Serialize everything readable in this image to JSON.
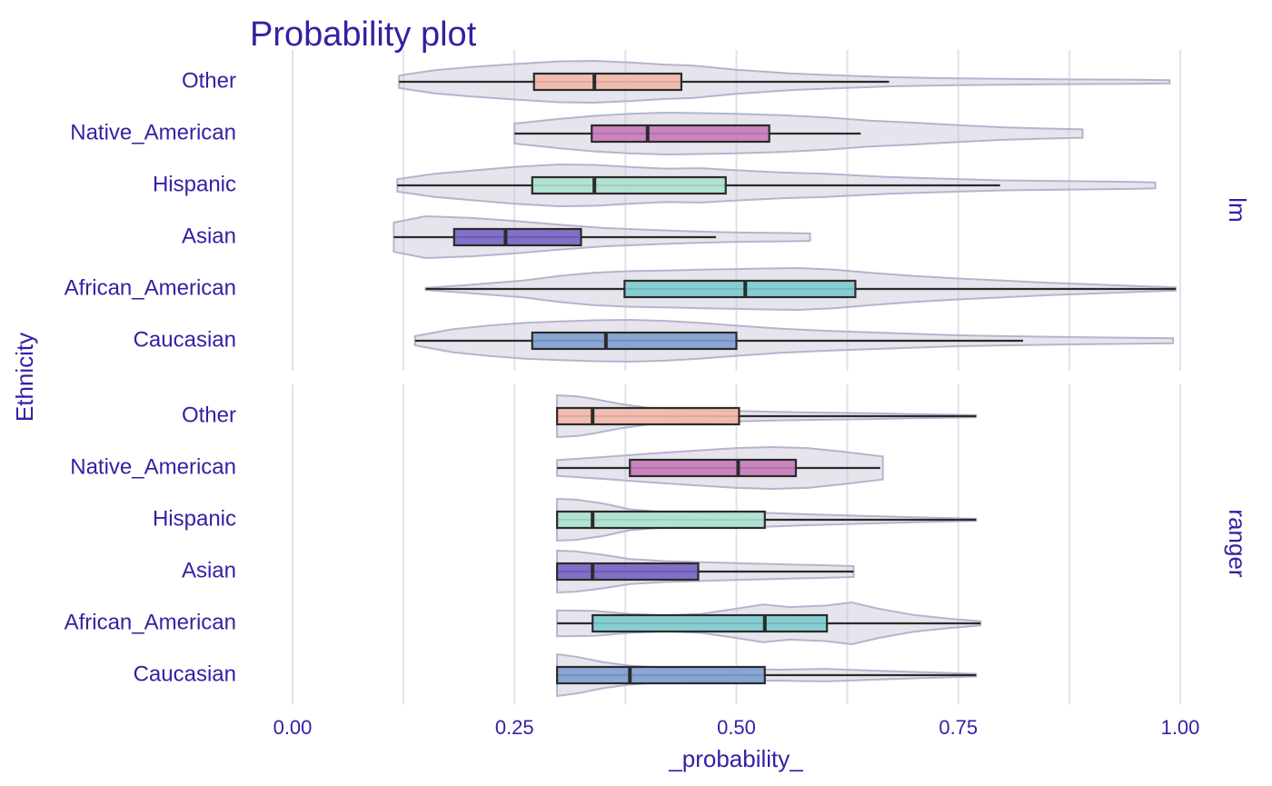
{
  "chart_data": {
    "type": "boxplot+violin",
    "title": "Probability plot",
    "xlabel": "_probability_",
    "ylabel": "Ethnicity",
    "xlim": [
      0,
      1
    ],
    "x_ticks": [
      0,
      0.25,
      0.5,
      0.75,
      1
    ],
    "x_tick_labels": [
      "0.00",
      "0.25",
      "0.50",
      "0.75",
      "1.00"
    ],
    "grid": true,
    "categories": [
      "Other",
      "Native_American",
      "Hispanic",
      "Asian",
      "African_American",
      "Caucasian"
    ],
    "colors": {
      "Other": "#f2b8a8",
      "Native_American": "#c67ab9",
      "Hispanic": "#ace1cf",
      "Asian": "#7763c3",
      "African_American": "#7ccbce",
      "Caucasian": "#7e9fd0",
      "violin_fill": "#c8c6d8",
      "violin_stroke": "#b7b3cc",
      "text": "#371ea3",
      "grid": "#e3e1ea"
    },
    "panels": [
      {
        "name": "lm",
        "series": [
          {
            "category": "Other",
            "min": 0.12,
            "q1": 0.272,
            "median": 0.34,
            "q3": 0.438,
            "max": 0.672,
            "range": [
              0.12,
              0.988
            ],
            "density": [
              [
                0.12,
                0.3
              ],
              [
                0.16,
                0.55
              ],
              [
                0.2,
                0.7
              ],
              [
                0.25,
                0.85
              ],
              [
                0.3,
                0.98
              ],
              [
                0.34,
                1.0
              ],
              [
                0.38,
                0.92
              ],
              [
                0.42,
                0.82
              ],
              [
                0.45,
                0.78
              ],
              [
                0.5,
                0.58
              ],
              [
                0.56,
                0.4
              ],
              [
                0.62,
                0.3
              ],
              [
                0.67,
                0.22
              ],
              [
                0.75,
                0.16
              ],
              [
                0.85,
                0.12
              ],
              [
                0.95,
                0.1
              ],
              [
                0.988,
                0.08
              ]
            ]
          },
          {
            "category": "Native_American",
            "min": 0.25,
            "q1": 0.337,
            "median": 0.4,
            "q3": 0.537,
            "max": 0.64,
            "range": [
              0.25,
              0.89
            ],
            "density": [
              [
                0.25,
                0.48
              ],
              [
                0.3,
                0.7
              ],
              [
                0.34,
                0.85
              ],
              [
                0.38,
                0.95
              ],
              [
                0.42,
                1.0
              ],
              [
                0.46,
                0.98
              ],
              [
                0.5,
                0.95
              ],
              [
                0.55,
                0.88
              ],
              [
                0.6,
                0.78
              ],
              [
                0.65,
                0.62
              ],
              [
                0.7,
                0.52
              ],
              [
                0.75,
                0.4
              ],
              [
                0.8,
                0.3
              ],
              [
                0.85,
                0.24
              ],
              [
                0.89,
                0.2
              ]
            ]
          },
          {
            "category": "Hispanic",
            "min": 0.118,
            "q1": 0.27,
            "median": 0.34,
            "q3": 0.488,
            "max": 0.797,
            "range": [
              0.118,
              0.972
            ],
            "density": [
              [
                0.118,
                0.3
              ],
              [
                0.16,
                0.55
              ],
              [
                0.2,
                0.7
              ],
              [
                0.25,
                0.88
              ],
              [
                0.3,
                1.0
              ],
              [
                0.34,
                0.98
              ],
              [
                0.38,
                0.88
              ],
              [
                0.42,
                0.8
              ],
              [
                0.46,
                0.82
              ],
              [
                0.5,
                0.72
              ],
              [
                0.55,
                0.62
              ],
              [
                0.6,
                0.55
              ],
              [
                0.67,
                0.4
              ],
              [
                0.75,
                0.3
              ],
              [
                0.8,
                0.24
              ],
              [
                0.88,
                0.2
              ],
              [
                0.95,
                0.16
              ],
              [
                0.972,
                0.14
              ]
            ]
          },
          {
            "category": "Asian",
            "min": 0.114,
            "q1": 0.182,
            "median": 0.24,
            "q3": 0.325,
            "max": 0.477,
            "range": [
              0.114,
              0.583
            ],
            "density": [
              [
                0.114,
                0.7
              ],
              [
                0.15,
                1.0
              ],
              [
                0.2,
                0.92
              ],
              [
                0.25,
                0.78
              ],
              [
                0.3,
                0.6
              ],
              [
                0.35,
                0.44
              ],
              [
                0.4,
                0.35
              ],
              [
                0.45,
                0.28
              ],
              [
                0.5,
                0.22
              ],
              [
                0.55,
                0.2
              ],
              [
                0.583,
                0.18
              ]
            ]
          },
          {
            "category": "African_American",
            "min": 0.15,
            "q1": 0.374,
            "median": 0.51,
            "q3": 0.634,
            "max": 0.995,
            "range": [
              0.15,
              0.995
            ],
            "density": [
              [
                0.15,
                0.05
              ],
              [
                0.2,
                0.2
              ],
              [
                0.26,
                0.4
              ],
              [
                0.3,
                0.62
              ],
              [
                0.34,
                0.78
              ],
              [
                0.38,
                0.85
              ],
              [
                0.42,
                0.88
              ],
              [
                0.46,
                0.92
              ],
              [
                0.5,
                0.95
              ],
              [
                0.53,
                0.98
              ],
              [
                0.57,
                1.0
              ],
              [
                0.61,
                0.92
              ],
              [
                0.65,
                0.78
              ],
              [
                0.7,
                0.62
              ],
              [
                0.75,
                0.5
              ],
              [
                0.8,
                0.4
              ],
              [
                0.85,
                0.3
              ],
              [
                0.9,
                0.22
              ],
              [
                0.95,
                0.14
              ],
              [
                0.995,
                0.08
              ]
            ]
          },
          {
            "category": "Caucasian",
            "min": 0.138,
            "q1": 0.27,
            "median": 0.353,
            "q3": 0.5,
            "max": 0.823,
            "range": [
              0.138,
              0.992
            ],
            "density": [
              [
                0.138,
                0.22
              ],
              [
                0.18,
                0.55
              ],
              [
                0.22,
                0.72
              ],
              [
                0.26,
                0.85
              ],
              [
                0.3,
                0.92
              ],
              [
                0.34,
                0.98
              ],
              [
                0.38,
                1.0
              ],
              [
                0.42,
                0.95
              ],
              [
                0.46,
                0.85
              ],
              [
                0.5,
                0.72
              ],
              [
                0.55,
                0.58
              ],
              [
                0.6,
                0.48
              ],
              [
                0.65,
                0.4
              ],
              [
                0.7,
                0.33
              ],
              [
                0.75,
                0.26
              ],
              [
                0.8,
                0.22
              ],
              [
                0.9,
                0.16
              ],
              [
                0.992,
                0.12
              ]
            ]
          }
        ]
      },
      {
        "name": "ranger",
        "series": [
          {
            "category": "Other",
            "min": 0.298,
            "q1": 0.298,
            "median": 0.338,
            "q3": 0.503,
            "max": 0.77,
            "range": [
              0.298,
              0.77
            ],
            "density": [
              [
                0.298,
                1.0
              ],
              [
                0.32,
                0.95
              ],
              [
                0.34,
                0.82
              ],
              [
                0.37,
                0.58
              ],
              [
                0.4,
                0.4
              ],
              [
                0.45,
                0.3
              ],
              [
                0.5,
                0.25
              ],
              [
                0.55,
                0.2
              ],
              [
                0.6,
                0.17
              ],
              [
                0.65,
                0.14
              ],
              [
                0.7,
                0.1
              ],
              [
                0.77,
                0.05
              ]
            ]
          },
          {
            "category": "Native_American",
            "min": 0.298,
            "q1": 0.38,
            "median": 0.502,
            "q3": 0.567,
            "max": 0.662,
            "range": [
              0.298,
              0.665
            ],
            "density": [
              [
                0.298,
                0.38
              ],
              [
                0.35,
                0.52
              ],
              [
                0.4,
                0.68
              ],
              [
                0.45,
                0.82
              ],
              [
                0.5,
                0.95
              ],
              [
                0.54,
                1.0
              ],
              [
                0.58,
                0.95
              ],
              [
                0.62,
                0.78
              ],
              [
                0.665,
                0.55
              ]
            ]
          },
          {
            "category": "Hispanic",
            "min": 0.298,
            "q1": 0.298,
            "median": 0.338,
            "q3": 0.532,
            "max": 0.77,
            "range": [
              0.298,
              0.77
            ],
            "density": [
              [
                0.298,
                1.0
              ],
              [
                0.32,
                0.96
              ],
              [
                0.35,
                0.78
              ],
              [
                0.38,
                0.5
              ],
              [
                0.42,
                0.36
              ],
              [
                0.48,
                0.3
              ],
              [
                0.53,
                0.34
              ],
              [
                0.58,
                0.26
              ],
              [
                0.63,
                0.2
              ],
              [
                0.7,
                0.12
              ],
              [
                0.77,
                0.05
              ]
            ]
          },
          {
            "category": "Asian",
            "min": 0.298,
            "q1": 0.298,
            "median": 0.338,
            "q3": 0.457,
            "max": 0.632,
            "range": [
              0.298,
              0.632
            ],
            "density": [
              [
                0.298,
                1.0
              ],
              [
                0.32,
                0.96
              ],
              [
                0.35,
                0.8
              ],
              [
                0.38,
                0.6
              ],
              [
                0.42,
                0.5
              ],
              [
                0.46,
                0.45
              ],
              [
                0.5,
                0.4
              ],
              [
                0.55,
                0.35
              ],
              [
                0.6,
                0.3
              ],
              [
                0.632,
                0.26
              ]
            ]
          },
          {
            "category": "African_American",
            "min": 0.298,
            "q1": 0.338,
            "median": 0.532,
            "q3": 0.602,
            "max": 0.775,
            "range": [
              0.298,
              0.775
            ],
            "density": [
              [
                0.298,
                0.62
              ],
              [
                0.34,
                0.6
              ],
              [
                0.38,
                0.45
              ],
              [
                0.42,
                0.38
              ],
              [
                0.46,
                0.45
              ],
              [
                0.5,
                0.7
              ],
              [
                0.53,
                0.9
              ],
              [
                0.56,
                0.78
              ],
              [
                0.6,
                0.85
              ],
              [
                0.63,
                1.0
              ],
              [
                0.66,
                0.7
              ],
              [
                0.7,
                0.4
              ],
              [
                0.74,
                0.22
              ],
              [
                0.775,
                0.1
              ]
            ]
          },
          {
            "category": "Caucasian",
            "min": 0.298,
            "q1": 0.298,
            "median": 0.38,
            "q3": 0.532,
            "max": 0.77,
            "range": [
              0.298,
              0.77
            ],
            "density": [
              [
                0.298,
                1.0
              ],
              [
                0.32,
                0.88
              ],
              [
                0.35,
                0.62
              ],
              [
                0.38,
                0.45
              ],
              [
                0.42,
                0.35
              ],
              [
                0.46,
                0.3
              ],
              [
                0.5,
                0.28
              ],
              [
                0.55,
                0.26
              ],
              [
                0.6,
                0.3
              ],
              [
                0.65,
                0.22
              ],
              [
                0.7,
                0.15
              ],
              [
                0.77,
                0.06
              ]
            ]
          }
        ]
      }
    ]
  }
}
